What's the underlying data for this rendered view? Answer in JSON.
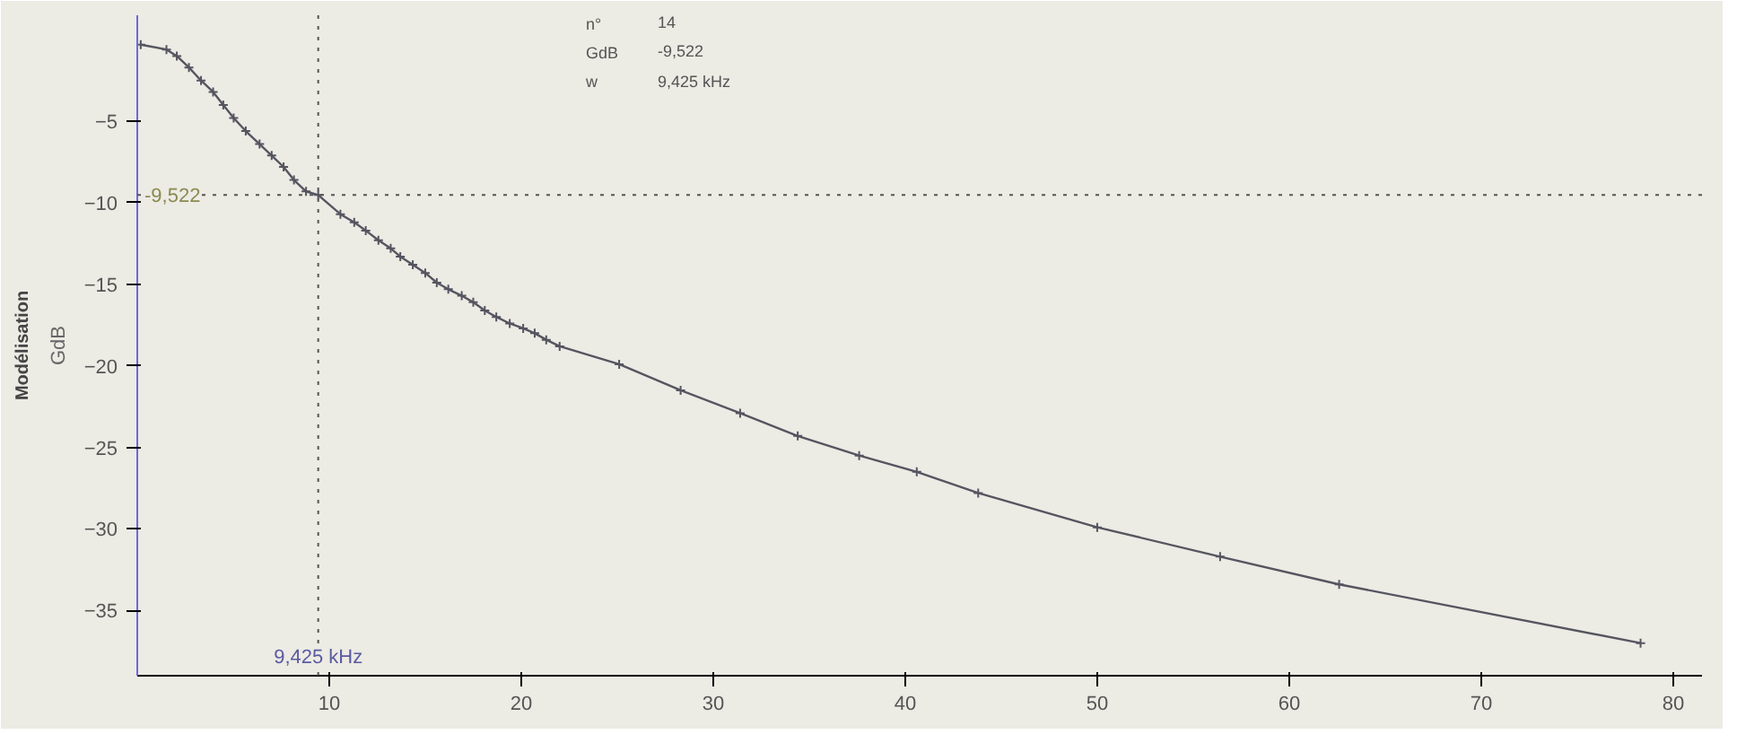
{
  "chart_data": {
    "type": "line",
    "ylabel": "GdB",
    "x": [
      0.18,
      1.52,
      2.06,
      2.69,
      3.32,
      3.95,
      4.48,
      5.02,
      5.65,
      6.37,
      7.0,
      7.62,
      8.16,
      8.79,
      9.425,
      10.58,
      11.3,
      11.9,
      12.56,
      13.2,
      13.7,
      14.35,
      15.0,
      15.6,
      16.2,
      16.9,
      17.5,
      18.1,
      18.7,
      19.4,
      20.1,
      20.7,
      21.3,
      22.0,
      25.1,
      28.3,
      31.4,
      34.4,
      37.6,
      40.6,
      43.8,
      50.0,
      56.4,
      62.6,
      78.3
    ],
    "series": [
      {
        "color": "#555560",
        "values": [
          -0.3,
          -0.6,
          -1.0,
          -1.7,
          -2.5,
          -3.2,
          -4.0,
          -4.8,
          -5.6,
          -6.4,
          -7.1,
          -7.8,
          -8.6,
          -9.3,
          -9.522,
          -10.7,
          -11.2,
          -11.7,
          -12.3,
          -12.8,
          -13.3,
          -13.8,
          -14.3,
          -14.9,
          -15.3,
          -15.7,
          -16.1,
          -16.6,
          -17.0,
          -17.4,
          -17.7,
          -18.0,
          -18.4,
          -18.8,
          -19.9,
          -21.5,
          -22.9,
          -24.3,
          -25.5,
          -26.5,
          -27.8,
          -29.9,
          -31.7,
          -33.4,
          -37.0
        ]
      }
    ],
    "xlim": [
      0,
      81.5
    ],
    "ylim": [
      -39,
      1.5
    ],
    "xticks": [
      10,
      20,
      30,
      40,
      50,
      60,
      70,
      80
    ],
    "yticks": [
      -35,
      -30,
      -25,
      -20,
      -15,
      -10,
      -5
    ],
    "marker": "cross",
    "line_style": "solid",
    "grid": false,
    "ref_lines": [
      {
        "axis": "x",
        "value": 9.425,
        "label": "9,425 kHz",
        "color": "#555555",
        "line_style": "dotted"
      },
      {
        "axis": "y",
        "value": -9.522,
        "label": "-9,522",
        "color": "#555555",
        "line_style": "dotted"
      }
    ],
    "annotations": [
      "n°",
      "14",
      "GdB",
      "-9,522",
      "w",
      "9,425 kHz",
      "Modélisation"
    ]
  }
}
